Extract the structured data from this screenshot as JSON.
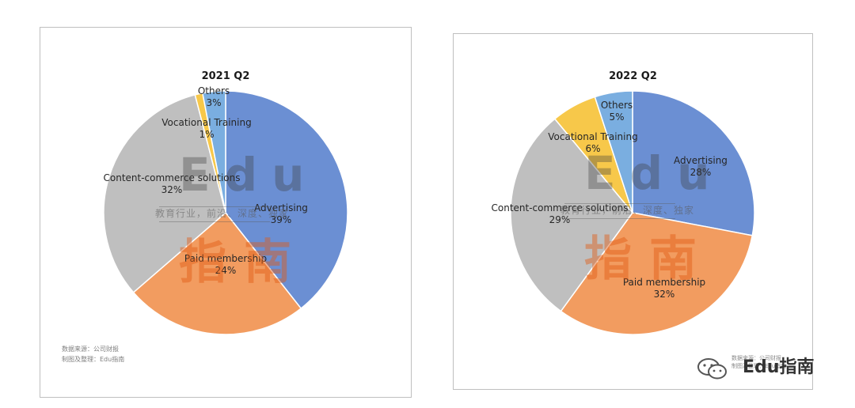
{
  "chart_data": [
    {
      "type": "pie",
      "title": "2021 Q2",
      "slices": [
        {
          "label": "Advertising",
          "value": 39,
          "pct": "39%",
          "color": "#6b8fd3"
        },
        {
          "label": "Paid membership",
          "value": 24,
          "pct": "24%",
          "color": "#f29c60"
        },
        {
          "label": "Content-commerce solutions",
          "value": 32,
          "pct": "32%",
          "color": "#bfbfbf"
        },
        {
          "label": "Vocational Training",
          "value": 1,
          "pct": "1%",
          "color": "#f7c84a"
        },
        {
          "label": "Others",
          "value": 3,
          "pct": "3%",
          "color": "#7aaee0"
        }
      ],
      "source_lines": [
        "数据来源：公司财报",
        "制图及整理：Edu指南"
      ]
    },
    {
      "type": "pie",
      "title": "2022 Q2",
      "slices": [
        {
          "label": "Advertising",
          "value": 28,
          "pct": "28%",
          "color": "#6b8fd3"
        },
        {
          "label": "Paid membership",
          "value": 32,
          "pct": "32%",
          "color": "#f29c60"
        },
        {
          "label": "Content-commerce solutions",
          "value": 29,
          "pct": "29%",
          "color": "#bfbfbf"
        },
        {
          "label": "Vocational Training",
          "value": 6,
          "pct": "6%",
          "color": "#f7c84a"
        },
        {
          "label": "Others",
          "value": 5,
          "pct": "5%",
          "color": "#7aaee0"
        }
      ],
      "source_lines": [
        "数据来源：公司财报",
        "制图及整理：Edu指南"
      ]
    }
  ],
  "watermark": {
    "brand": "Edu",
    "tagline": "教育行业，前沿、深度、独家",
    "cn_brand": "指南"
  },
  "footer": {
    "brand": "Edu指南",
    "icon": "wechat-icon"
  }
}
